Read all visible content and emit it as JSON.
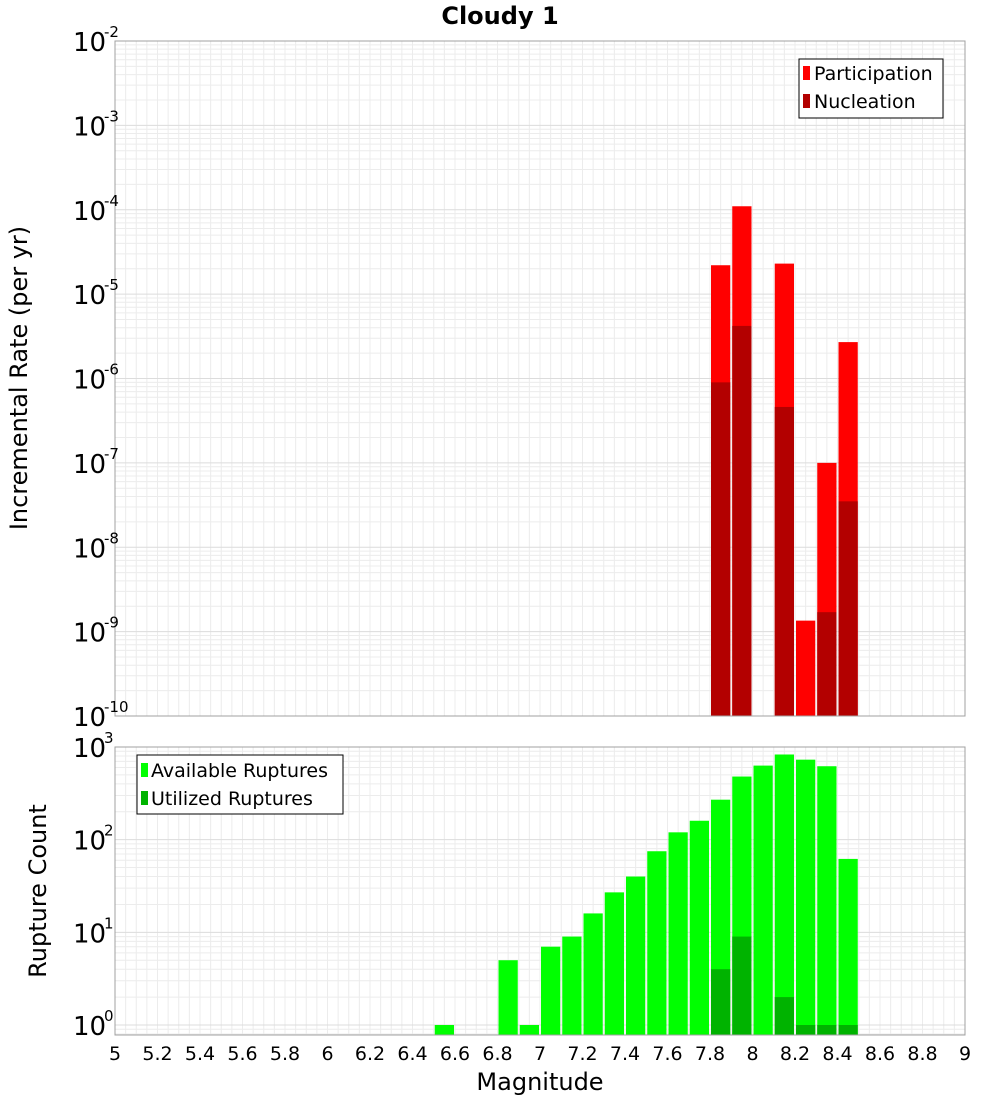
{
  "chart_data": [
    {
      "type": "bar",
      "title": "Cloudy 1",
      "xlabel": "",
      "ylabel": "Incremental Rate (per yr)",
      "yscale": "log",
      "xlim": [
        5,
        9
      ],
      "ylim": [
        1e-10,
        0.01
      ],
      "ytick_exponents": [
        -10,
        -9,
        -8,
        -7,
        -6,
        -5,
        -4,
        -3,
        -2
      ],
      "legend_position": "top-right",
      "bar_width": 0.1,
      "series": [
        {
          "name": "Participation",
          "color": "#ff0000",
          "x": [
            7.85,
            7.95,
            8.15,
            8.25,
            8.35,
            8.45
          ],
          "values": [
            2.2e-05,
            0.00011,
            2.3e-05,
            1.35e-09,
            1e-07,
            2.7e-06
          ]
        },
        {
          "name": "Nucleation",
          "color": "#b30000",
          "x": [
            7.85,
            7.95,
            8.15,
            8.35,
            8.45
          ],
          "values": [
            9e-07,
            4.2e-06,
            4.6e-07,
            1.7e-09,
            3.5e-08
          ]
        }
      ]
    },
    {
      "type": "bar",
      "title": "",
      "xlabel": "Magnitude",
      "ylabel": "Rupture Count",
      "yscale": "log",
      "xlim": [
        5,
        9
      ],
      "ylim": [
        0.78,
        1000
      ],
      "ytick_exponents": [
        0,
        1,
        2,
        3
      ],
      "xticks": [
        "5",
        "5.2",
        "5.4",
        "5.6",
        "5.8",
        "6",
        "6.2",
        "6.4",
        "6.6",
        "6.8",
        "7",
        "7.2",
        "7.4",
        "7.6",
        "7.8",
        "8",
        "8.2",
        "8.4",
        "8.6",
        "8.8",
        "9"
      ],
      "legend_position": "top-left",
      "bar_width": 0.1,
      "series": [
        {
          "name": "Available Ruptures",
          "color": "#00ff00",
          "x": [
            6.55,
            6.85,
            6.95,
            7.05,
            7.15,
            7.25,
            7.35,
            7.45,
            7.55,
            7.65,
            7.75,
            7.85,
            7.95,
            8.05,
            8.15,
            8.25,
            8.35,
            8.45
          ],
          "values": [
            1,
            5,
            1,
            7,
            9,
            16,
            27,
            40,
            75,
            120,
            160,
            270,
            480,
            630,
            830,
            730,
            620,
            62
          ]
        },
        {
          "name": "Utilized Ruptures",
          "color": "#00b300",
          "x": [
            7.85,
            7.95,
            8.15,
            8.25,
            8.35,
            8.45
          ],
          "values": [
            4,
            9,
            2,
            1,
            1,
            1
          ]
        }
      ]
    }
  ]
}
